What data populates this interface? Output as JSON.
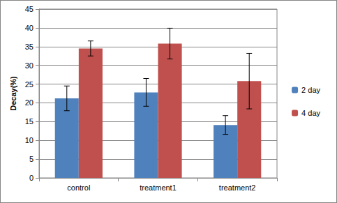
{
  "chart_data": {
    "type": "bar",
    "y_label": "Decay(%)",
    "categories": [
      "control",
      "treatment1",
      "treatment2"
    ],
    "series": [
      {
        "name": "2 day",
        "color": "#4f81bd",
        "values": [
          21.2,
          22.8,
          14.1
        ],
        "errors": [
          3.3,
          3.7,
          2.5
        ]
      },
      {
        "name": "4 day",
        "color": "#c0504d",
        "values": [
          34.5,
          35.8,
          25.8
        ],
        "errors": [
          2.0,
          4.1,
          7.4
        ]
      }
    ],
    "ylim": [
      0,
      45
    ],
    "yticks": [
      0,
      5,
      10,
      15,
      20,
      25,
      30,
      35,
      40,
      45
    ],
    "grid": true,
    "legend": "right"
  }
}
